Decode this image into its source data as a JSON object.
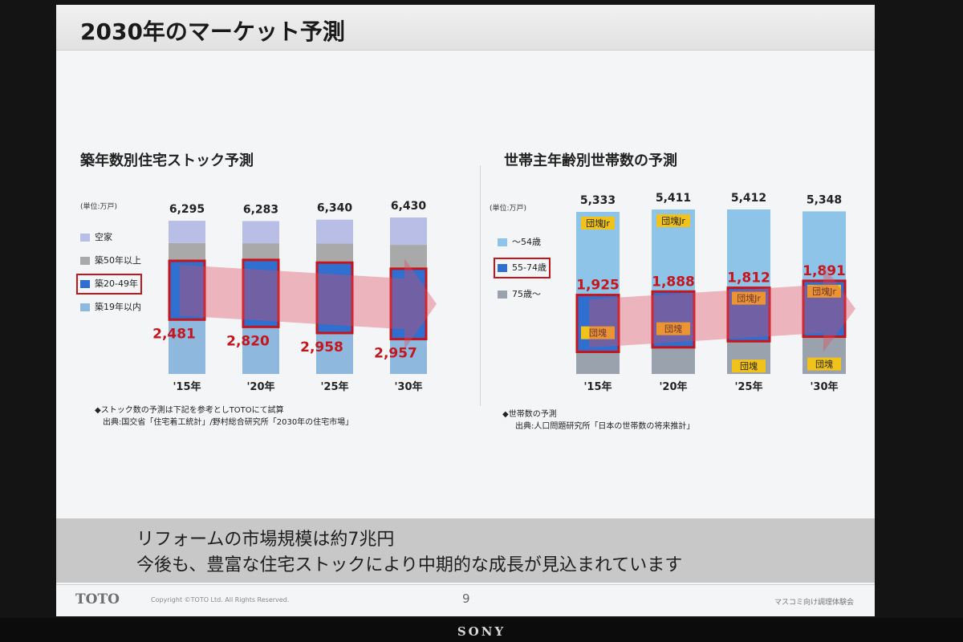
{
  "slide": {
    "title": "2030年のマーケット予測",
    "message": {
      "line1": "リフォームの市場規模は約7兆円",
      "line2": "今後も、豊富な住宅ストックにより中期的な成長が見込まれています"
    },
    "footer": {
      "logo": "TOTO",
      "copyright": "Copyright ©TOTO Ltd. All Rights Reserved.",
      "page_number": "9",
      "event": "マスコミ向け調理体験会"
    }
  },
  "monitor_brand": "SONY",
  "chart_data": [
    {
      "type": "bar",
      "stacked": true,
      "title": "築年数別住宅ストック予測",
      "unit": "(単位:万戸)",
      "categories": [
        "'15年",
        "'20年",
        "'25年",
        "'30年"
      ],
      "totals": [
        6295,
        6283,
        6340,
        6430
      ],
      "total_labels": [
        "6,295",
        "6,283",
        "6,340",
        "6,430"
      ],
      "highlight_series": "築20-49年",
      "highlight_labels": [
        "2,481",
        "2,820",
        "2,958",
        "2,957"
      ],
      "series": [
        {
          "name": "築19年以内",
          "color": "#8fb8df",
          "values": [
            2200,
            1900,
            1650,
            1400
          ]
        },
        {
          "name": "築20-49年",
          "color": "#2f6fd0",
          "values": [
            2481,
            2820,
            2958,
            2957
          ]
        },
        {
          "name": "築50年以上",
          "color": "#a9a9a9",
          "values": [
            700,
            650,
            750,
            950
          ]
        },
        {
          "name": "空家",
          "color": "#b9bee6",
          "values": [
            914,
            913,
            982,
            1123
          ]
        }
      ],
      "legend_order": [
        "空家",
        "築50年以上",
        "築20-49年",
        "築19年以内"
      ],
      "notes": [
        "◆ストック数の予測は下記を参考としTOTOにて試算",
        "出典:国交省「住宅着工統計」/野村総合研究所「2030年の住宅市場」"
      ]
    },
    {
      "type": "bar",
      "stacked": true,
      "title": "世帯主年齢別世帯数の予測",
      "unit": "(単位:万戸)",
      "categories": [
        "'15年",
        "'20年",
        "'25年",
        "'30年"
      ],
      "totals": [
        5333,
        5411,
        5412,
        5348
      ],
      "total_labels": [
        "5,333",
        "5,411",
        "5,412",
        "5,348"
      ],
      "highlight_series": "55-74歳",
      "highlight_labels": [
        "1,925",
        "1,888",
        "1,812",
        "1,891"
      ],
      "series": [
        {
          "name": "75歳〜",
          "color": "#9aa3ad",
          "values": [
            700,
            850,
            1050,
            1200
          ]
        },
        {
          "name": "55-74歳",
          "color": "#2f6fd0",
          "values": [
            1925,
            1888,
            1812,
            1891
          ]
        },
        {
          "name": "〜54歳",
          "color": "#8ec4e8",
          "values": [
            2708,
            2673,
            2550,
            2257
          ]
        }
      ],
      "legend_order": [
        "〜54歳",
        "55-74歳",
        "75歳〜"
      ],
      "generation_labels": {
        "boomer": "団塊",
        "boomer_jr": "団塊Jr",
        "boomer_jr_position": [
          "〜54歳",
          "〜54歳",
          "55-74歳",
          "55-74歳"
        ],
        "boomer_position": [
          "55-74歳",
          "55-74歳",
          "75歳〜",
          "75歳〜"
        ]
      },
      "notes": [
        "◆世帯数の予測",
        "出典:人口問題研究所「日本の世帯数の将来推計」"
      ]
    }
  ]
}
